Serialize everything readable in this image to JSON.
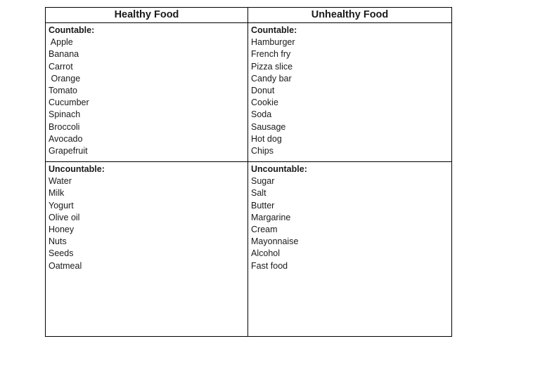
{
  "colors": {
    "background": "#ffffff",
    "border": "#000000",
    "text": "#1a1a1a"
  },
  "table": {
    "columns": [
      {
        "header": "Healthy Food",
        "countable_label": "Countable:",
        "countable_items": [
          " Apple",
          "Banana",
          "Carrot",
          " Orange",
          "Tomato",
          "Cucumber",
          "Spinach",
          "Broccoli",
          "Avocado",
          "Grapefruit"
        ],
        "uncountable_label": "Uncountable:",
        "uncountable_items": [
          "Water",
          "Milk",
          "Yogurt",
          "Olive oil",
          "Honey",
          "Nuts",
          "Seeds",
          "Oatmeal"
        ]
      },
      {
        "header": "Unhealthy Food",
        "countable_label": "Countable:",
        "countable_items": [
          "Hamburger",
          "French fry",
          "Pizza slice",
          "Candy bar",
          "Donut",
          "Cookie",
          "Soda",
          "Sausage",
          "Hot dog",
          "Chips"
        ],
        "uncountable_label": "Uncountable:",
        "uncountable_items": [
          "Sugar",
          "Salt",
          "Butter",
          "Margarine",
          "Cream",
          "Mayonnaise",
          "Alcohol",
          "Fast food"
        ]
      }
    ]
  }
}
